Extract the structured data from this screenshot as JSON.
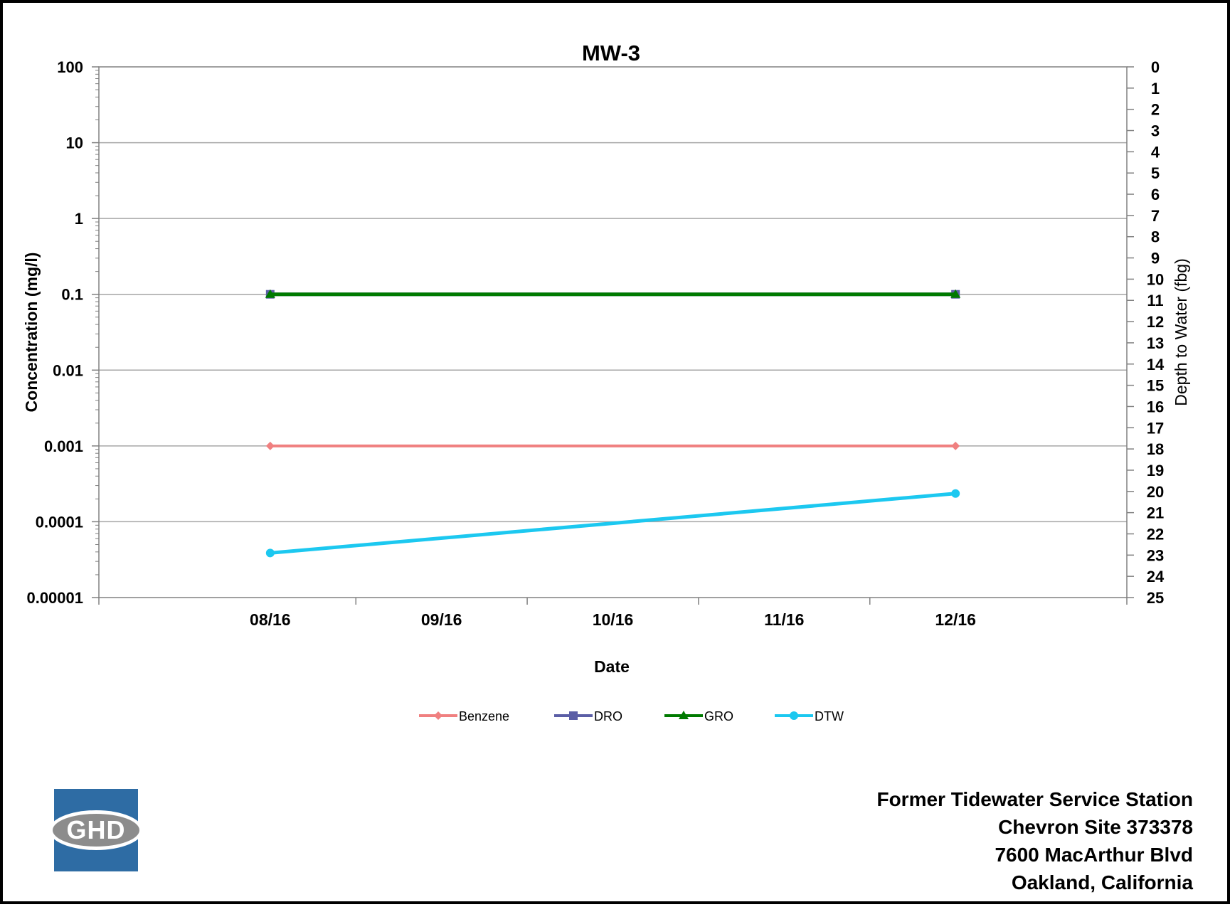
{
  "chart_data": {
    "type": "line",
    "title": "MW-3",
    "xlabel": "Date",
    "ylabel_left": "Concentration (mg/l)",
    "ylabel_right": "Depth to Water (fbg)",
    "x_tick_labels": [
      "08/16",
      "09/16",
      "10/16",
      "11/16",
      "12/16"
    ],
    "x_range": [
      "07/16",
      "01/17"
    ],
    "y_left_scale": "log",
    "y_left_range": [
      1e-05,
      100
    ],
    "y_left_tick_labels": [
      "100",
      "10",
      "1",
      "0.1",
      "0.01",
      "0.001",
      "0.0001",
      "0.00001"
    ],
    "y_right_range": [
      0,
      25
    ],
    "y_right_inverted": true,
    "y_right_tick_labels": [
      "0",
      "1",
      "2",
      "3",
      "4",
      "5",
      "6",
      "7",
      "8",
      "9",
      "10",
      "11",
      "12",
      "13",
      "14",
      "15",
      "16",
      "17",
      "18",
      "19",
      "20",
      "21",
      "22",
      "23",
      "24",
      "25"
    ],
    "gridlines": "horizontal",
    "legend_position": "bottom",
    "series": [
      {
        "name": "Benzene",
        "axis": "left",
        "color": "#F08080",
        "marker": "diamond",
        "x": [
          "08/16",
          "12/16"
        ],
        "y": [
          0.001,
          0.001
        ]
      },
      {
        "name": "DRO",
        "axis": "left",
        "color": "#5B5EA6",
        "marker": "square",
        "x": [
          "08/16",
          "12/16"
        ],
        "y": [
          0.1,
          0.1
        ]
      },
      {
        "name": "GRO",
        "axis": "left",
        "color": "#007A00",
        "marker": "triangle",
        "x": [
          "08/16",
          "12/16"
        ],
        "y": [
          0.1,
          0.1
        ]
      },
      {
        "name": "DTW",
        "axis": "right",
        "color": "#1CC8F0",
        "marker": "circle",
        "x": [
          "08/16",
          "12/16"
        ],
        "y": [
          22.9,
          20.1
        ]
      }
    ]
  },
  "logo": {
    "text": "GHD",
    "color": "#2E6CA4"
  },
  "site_info": {
    "line1": "Former Tidewater Service Station",
    "line2": "Chevron Site 373378",
    "line3": "7600 MacArthur Blvd",
    "line4": "Oakland, California"
  }
}
